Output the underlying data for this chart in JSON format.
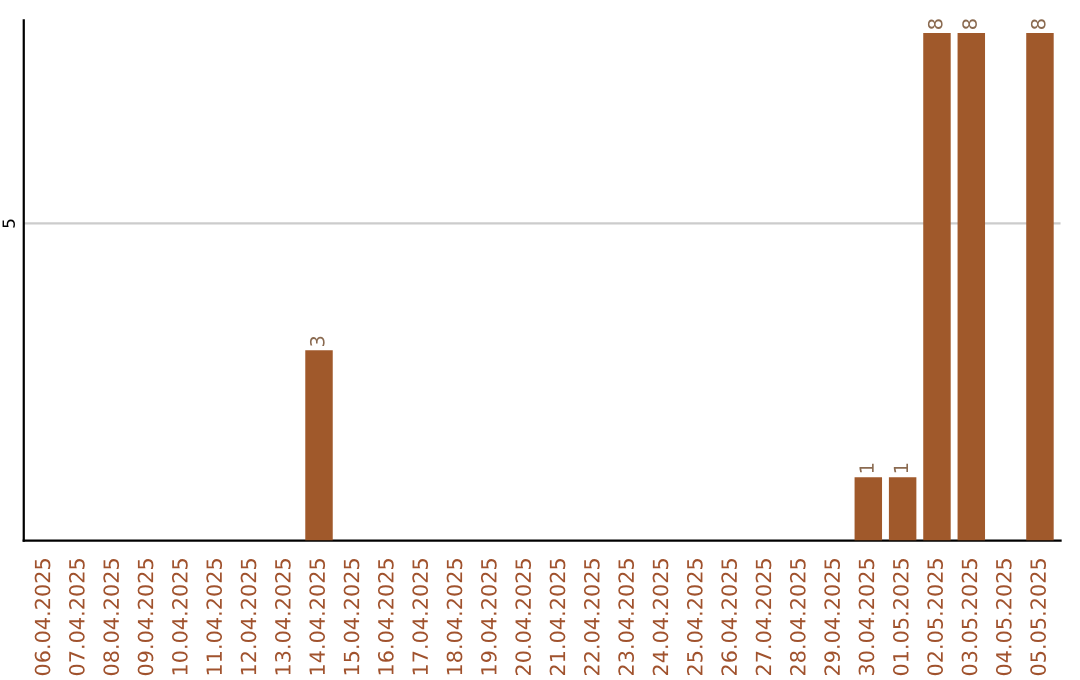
{
  "chart_data": {
    "type": "bar",
    "categories": [
      "06.04.2025",
      "07.04.2025",
      "08.04.2025",
      "09.04.2025",
      "10.04.2025",
      "11.04.2025",
      "12.04.2025",
      "13.04.2025",
      "14.04.2025",
      "15.04.2025",
      "16.04.2025",
      "17.04.2025",
      "18.04.2025",
      "19.04.2025",
      "20.04.2025",
      "21.04.2025",
      "22.04.2025",
      "23.04.2025",
      "24.04.2025",
      "25.04.2025",
      "26.04.2025",
      "27.04.2025",
      "28.04.2025",
      "29.04.2025",
      "30.04.2025",
      "01.05.2025",
      "02.05.2025",
      "03.05.2025",
      "04.05.2025",
      "05.05.2025"
    ],
    "values": [
      null,
      null,
      null,
      null,
      null,
      null,
      null,
      null,
      3,
      null,
      null,
      null,
      null,
      null,
      null,
      null,
      null,
      null,
      null,
      null,
      null,
      null,
      null,
      null,
      1,
      1,
      8,
      8,
      null,
      8
    ],
    "color": "#a0592b",
    "ylim": [
      0,
      8.2
    ],
    "yticks": [
      5
    ],
    "grid": "y",
    "data_labels": true
  }
}
